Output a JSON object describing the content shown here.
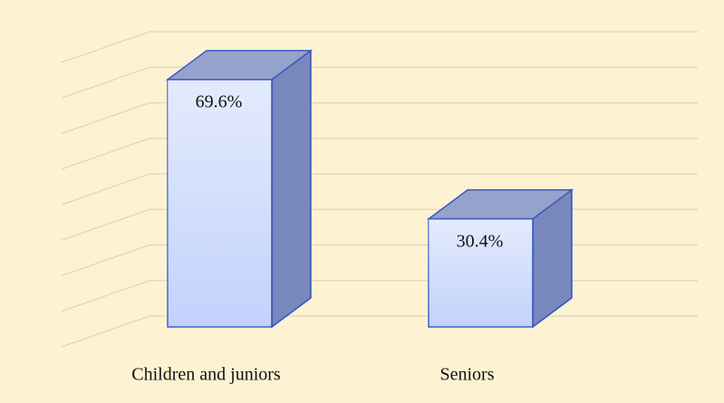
{
  "chart_data": {
    "type": "bar3d",
    "categories": [
      "Children and juniors",
      "Seniors"
    ],
    "values": [
      69.6,
      30.4
    ],
    "value_labels": [
      "69.6%",
      "30.4%"
    ],
    "color": "#c2d2fb",
    "ylim": [
      0,
      80
    ],
    "yticks": [
      0,
      10,
      20,
      30,
      40,
      50,
      60,
      70,
      80
    ],
    "grid": true
  }
}
